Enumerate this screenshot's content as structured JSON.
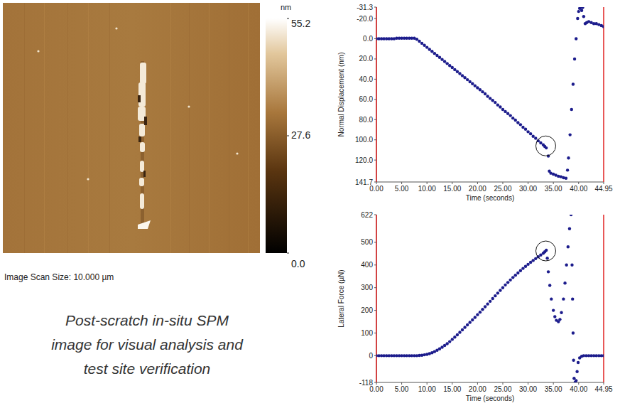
{
  "image_panel": {
    "scan_size_label": "Image Scan Size: 10.000 µm",
    "caption": [
      "Post-scratch in-situ SPM",
      "image for visual analysis and",
      "test site verification"
    ],
    "colorbar": {
      "unit": "nm",
      "range": [
        0,
        55.2
      ],
      "ticks": [
        {
          "value": 0,
          "label": "0.0"
        },
        27.6,
        55.2
      ]
    }
  },
  "chart_data": [
    {
      "type": "scatter",
      "marker": "circle",
      "color": "#1c1c8c",
      "xlabel": "Time (seconds)",
      "ylabel": "Normal Displacement (nm)",
      "xlim": [
        0,
        44.95
      ],
      "ylim": [
        141.7,
        -31.3
      ],
      "xticks": [
        {
          "value": 0,
          "label": "0.00"
        },
        {
          "value": 5,
          "label": "5.00"
        },
        {
          "value": 10,
          "label": "10.00"
        },
        {
          "value": 15,
          "label": "15.00"
        },
        {
          "value": 20,
          "label": "20.00"
        },
        {
          "value": 25,
          "label": "25.00"
        },
        {
          "value": 30,
          "label": "30.00"
        },
        {
          "value": 35,
          "label": "35.00"
        },
        {
          "value": 40,
          "label": "40.00"
        },
        44.95
      ],
      "yticks": [
        -31.3,
        {
          "value": -20,
          "label": "-20.0"
        },
        {
          "value": 0,
          "label": "0.0"
        },
        {
          "value": 20,
          "label": "20.0"
        },
        {
          "value": 40,
          "label": "40.0"
        },
        {
          "value": 60,
          "label": "60.0"
        },
        {
          "value": 80,
          "label": "80.0"
        },
        {
          "value": 100,
          "label": "100.0"
        },
        {
          "value": 120,
          "label": "120.0"
        },
        141.7
      ],
      "circled": {
        "x": 33.5,
        "y": 106
      },
      "x": [
        0,
        0.5,
        1,
        1.5,
        2,
        2.5,
        3,
        3.5,
        4,
        4.5,
        5,
        5.5,
        6,
        6.5,
        7,
        7.5,
        8,
        8.5,
        9,
        9.5,
        10,
        10.5,
        11,
        11.5,
        12,
        12.5,
        13,
        13.5,
        14,
        14.5,
        15,
        15.5,
        16,
        16.5,
        17,
        17.5,
        18,
        18.5,
        19,
        19.5,
        20,
        20.5,
        21,
        21.5,
        22,
        22.5,
        23,
        23.5,
        24,
        24.5,
        25,
        25.5,
        26,
        26.5,
        27,
        27.5,
        28,
        28.5,
        29,
        29.5,
        30,
        30.5,
        31,
        31.5,
        32,
        32.5,
        33,
        33.3,
        33.6,
        34,
        34.2,
        34.5,
        35,
        35.5,
        36,
        36.5,
        37,
        37.5,
        37.8,
        38,
        38.3,
        38.6,
        38.9,
        39.2,
        39.5,
        39.8,
        40,
        40.2,
        40.4,
        40.6,
        40.8,
        41,
        41.3,
        41.6,
        42,
        42.5,
        43,
        43.5,
        44,
        44.5,
        44.95
      ],
      "values": [
        0,
        0,
        0,
        0,
        0,
        0,
        0,
        0,
        -0.5,
        -0.5,
        -0.5,
        -0.5,
        -0.5,
        -0.5,
        -0.5,
        -0.5,
        0.5,
        2.5,
        4.5,
        6.5,
        8.5,
        10.5,
        12.5,
        14.5,
        16.5,
        18.5,
        20.5,
        22.5,
        24.5,
        26.5,
        28.5,
        30.5,
        32.5,
        34.5,
        36.5,
        38.5,
        40.5,
        42.5,
        44.5,
        46.5,
        48.5,
        50.5,
        52.5,
        54.5,
        57,
        59,
        61,
        63,
        65.5,
        67.5,
        70,
        72,
        74,
        76,
        78.5,
        80.5,
        83,
        85,
        87.5,
        89.5,
        92,
        94,
        96.5,
        98.5,
        101,
        103,
        105,
        106.5,
        108,
        116,
        131,
        133,
        134,
        135,
        136,
        136.5,
        137.5,
        138,
        130,
        118,
        95,
        70,
        45,
        20,
        0,
        -20,
        -27,
        -30,
        -31,
        -28,
        -31,
        -22,
        -15,
        -16,
        -17,
        -16,
        -15,
        -15,
        -14,
        -13,
        -12
      ]
    },
    {
      "type": "scatter",
      "marker": "circle",
      "color": "#1c1c8c",
      "xlabel": "Time (seconds)",
      "ylabel": "Lateral Force (µN)",
      "xlim": [
        0,
        44.95
      ],
      "ylim": [
        -118,
        622
      ],
      "xticks": [
        {
          "value": 0,
          "label": "0.00"
        },
        {
          "value": 5,
          "label": "5.00"
        },
        {
          "value": 10,
          "label": "10.00"
        },
        {
          "value": 15,
          "label": "15.00"
        },
        {
          "value": 20,
          "label": "20.00"
        },
        {
          "value": 25,
          "label": "25.00"
        },
        {
          "value": 30,
          "label": "30.00"
        },
        {
          "value": 35,
          "label": "35.00"
        },
        {
          "value": 40,
          "label": "40.00"
        },
        44.95
      ],
      "yticks": [
        -118,
        0,
        100,
        200,
        300,
        400,
        500,
        622
      ],
      "circled": {
        "x": 33.5,
        "y": 462
      },
      "x": [
        0,
        0.5,
        1,
        1.5,
        2,
        2.5,
        3,
        3.5,
        4,
        4.5,
        5,
        5.5,
        6,
        6.5,
        7,
        7.5,
        8,
        8.5,
        9,
        9.5,
        10,
        10.5,
        11,
        11.5,
        12,
        12.5,
        13,
        13.5,
        14,
        14.5,
        15,
        15.5,
        16,
        16.5,
        17,
        17.5,
        18,
        18.5,
        19,
        19.5,
        20,
        20.5,
        21,
        21.5,
        22,
        22.5,
        23,
        23.5,
        24,
        24.5,
        25,
        25.5,
        26,
        26.5,
        27,
        27.5,
        28,
        28.5,
        29,
        29.5,
        30,
        30.5,
        31,
        31.5,
        32,
        32.5,
        33,
        33.3,
        33.6,
        33.8,
        34,
        34.3,
        34.6,
        35,
        35.3,
        35.6,
        36,
        36.3,
        36.6,
        37,
        37.3,
        37.6,
        37.9,
        38.2,
        38.5,
        38.7,
        38.8,
        38.9,
        39,
        39.1,
        39.3,
        39.5,
        39.7,
        39.9,
        40.2,
        40.6,
        41,
        41.5,
        42,
        42.5,
        43,
        43.5,
        44,
        44.5,
        44.95
      ],
      "values": [
        0,
        0,
        0,
        0,
        0,
        0,
        0,
        0,
        0,
        0,
        0,
        0,
        0,
        0,
        0,
        0,
        0,
        1,
        2,
        4,
        6,
        9,
        13,
        18,
        24,
        30,
        37,
        45,
        53,
        62,
        72,
        82,
        92,
        103,
        114,
        125,
        136,
        147,
        158,
        169,
        181,
        192,
        204,
        216,
        228,
        240,
        252,
        264,
        276,
        288,
        300,
        312,
        323,
        334,
        345,
        355,
        365,
        375,
        385,
        394,
        403,
        412,
        420,
        428,
        436,
        444,
        452,
        458,
        465,
        430,
        370,
        310,
        250,
        200,
        172,
        156,
        150,
        160,
        190,
        250,
        320,
        400,
        480,
        560,
        622,
        400,
        250,
        100,
        -20,
        -100,
        -118,
        -110,
        -70,
        -30,
        -10,
        -3,
        0,
        0,
        0,
        0,
        0,
        0,
        0,
        0,
        0
      ]
    }
  ]
}
